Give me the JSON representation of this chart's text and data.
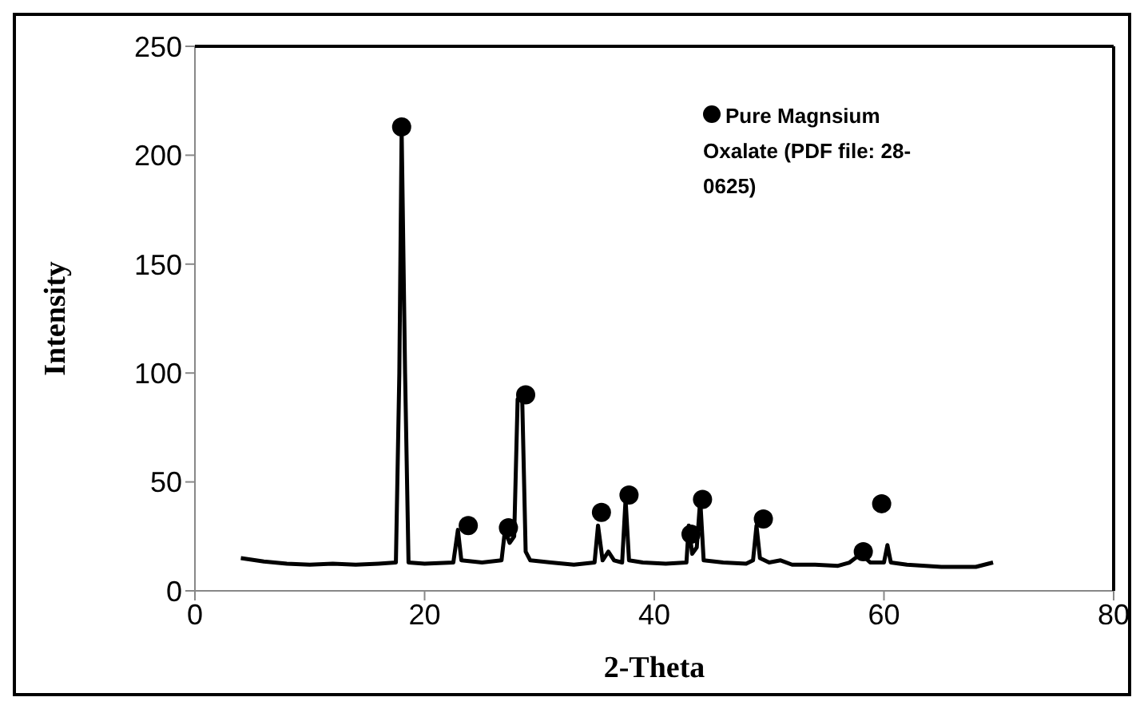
{
  "chart_data": {
    "type": "line",
    "xlabel": "2-Theta",
    "ylabel": "Intensity",
    "xlim": [
      0,
      80
    ],
    "xticks": [
      0,
      20,
      40,
      60,
      80
    ],
    "ylim": [
      0,
      250
    ],
    "yticks": [
      0,
      50,
      100,
      150,
      200,
      250
    ],
    "grid": false,
    "legend": "top right",
    "series": [
      {
        "type": "line",
        "color": "#000000",
        "x": [
          4,
          6,
          8,
          10,
          12,
          14,
          16,
          17.5,
          17.8,
          18.0,
          18.3,
          18.6,
          20,
          22.5,
          22.9,
          23.2,
          25,
          26.7,
          27,
          27.4,
          27.8,
          28.1,
          28.5,
          28.8,
          29.2,
          31,
          33,
          34.8,
          35.1,
          35.5,
          36,
          36.5,
          37.2,
          37.5,
          37.8,
          39,
          41,
          42.8,
          43.0,
          43.3,
          43.7,
          44.0,
          44.3,
          46,
          48,
          48.6,
          48.9,
          49.2,
          50,
          51,
          52,
          54,
          56,
          57,
          58,
          58.8,
          60,
          60.3,
          60.6,
          62,
          65,
          68,
          69.5
        ],
        "values": [
          15,
          13.5,
          12.5,
          12,
          12.5,
          12,
          12.5,
          13,
          100,
          212,
          100,
          13,
          12.5,
          13,
          28,
          14,
          13,
          14,
          28,
          22,
          25,
          88,
          88,
          18,
          14,
          13,
          12,
          13,
          30,
          14,
          18,
          14,
          13,
          42,
          14,
          13,
          12.5,
          13,
          30,
          17,
          20,
          42,
          14,
          13,
          12.5,
          14,
          30,
          15,
          13,
          14,
          12,
          12,
          11.5,
          13,
          17,
          13,
          13,
          21,
          13,
          12,
          11,
          11,
          13
        ]
      },
      {
        "type": "scatter",
        "name": "Pure Magnsium Oxalate (PDF file: 28-0625)",
        "color": "#000000",
        "x": [
          18,
          23.8,
          27.3,
          28.8,
          35.4,
          37.8,
          43.2,
          44.2,
          49.5,
          58.2,
          59.8
        ],
        "values": [
          213,
          30,
          29,
          90,
          36,
          44,
          26,
          42,
          33,
          18,
          40
        ]
      }
    ]
  }
}
